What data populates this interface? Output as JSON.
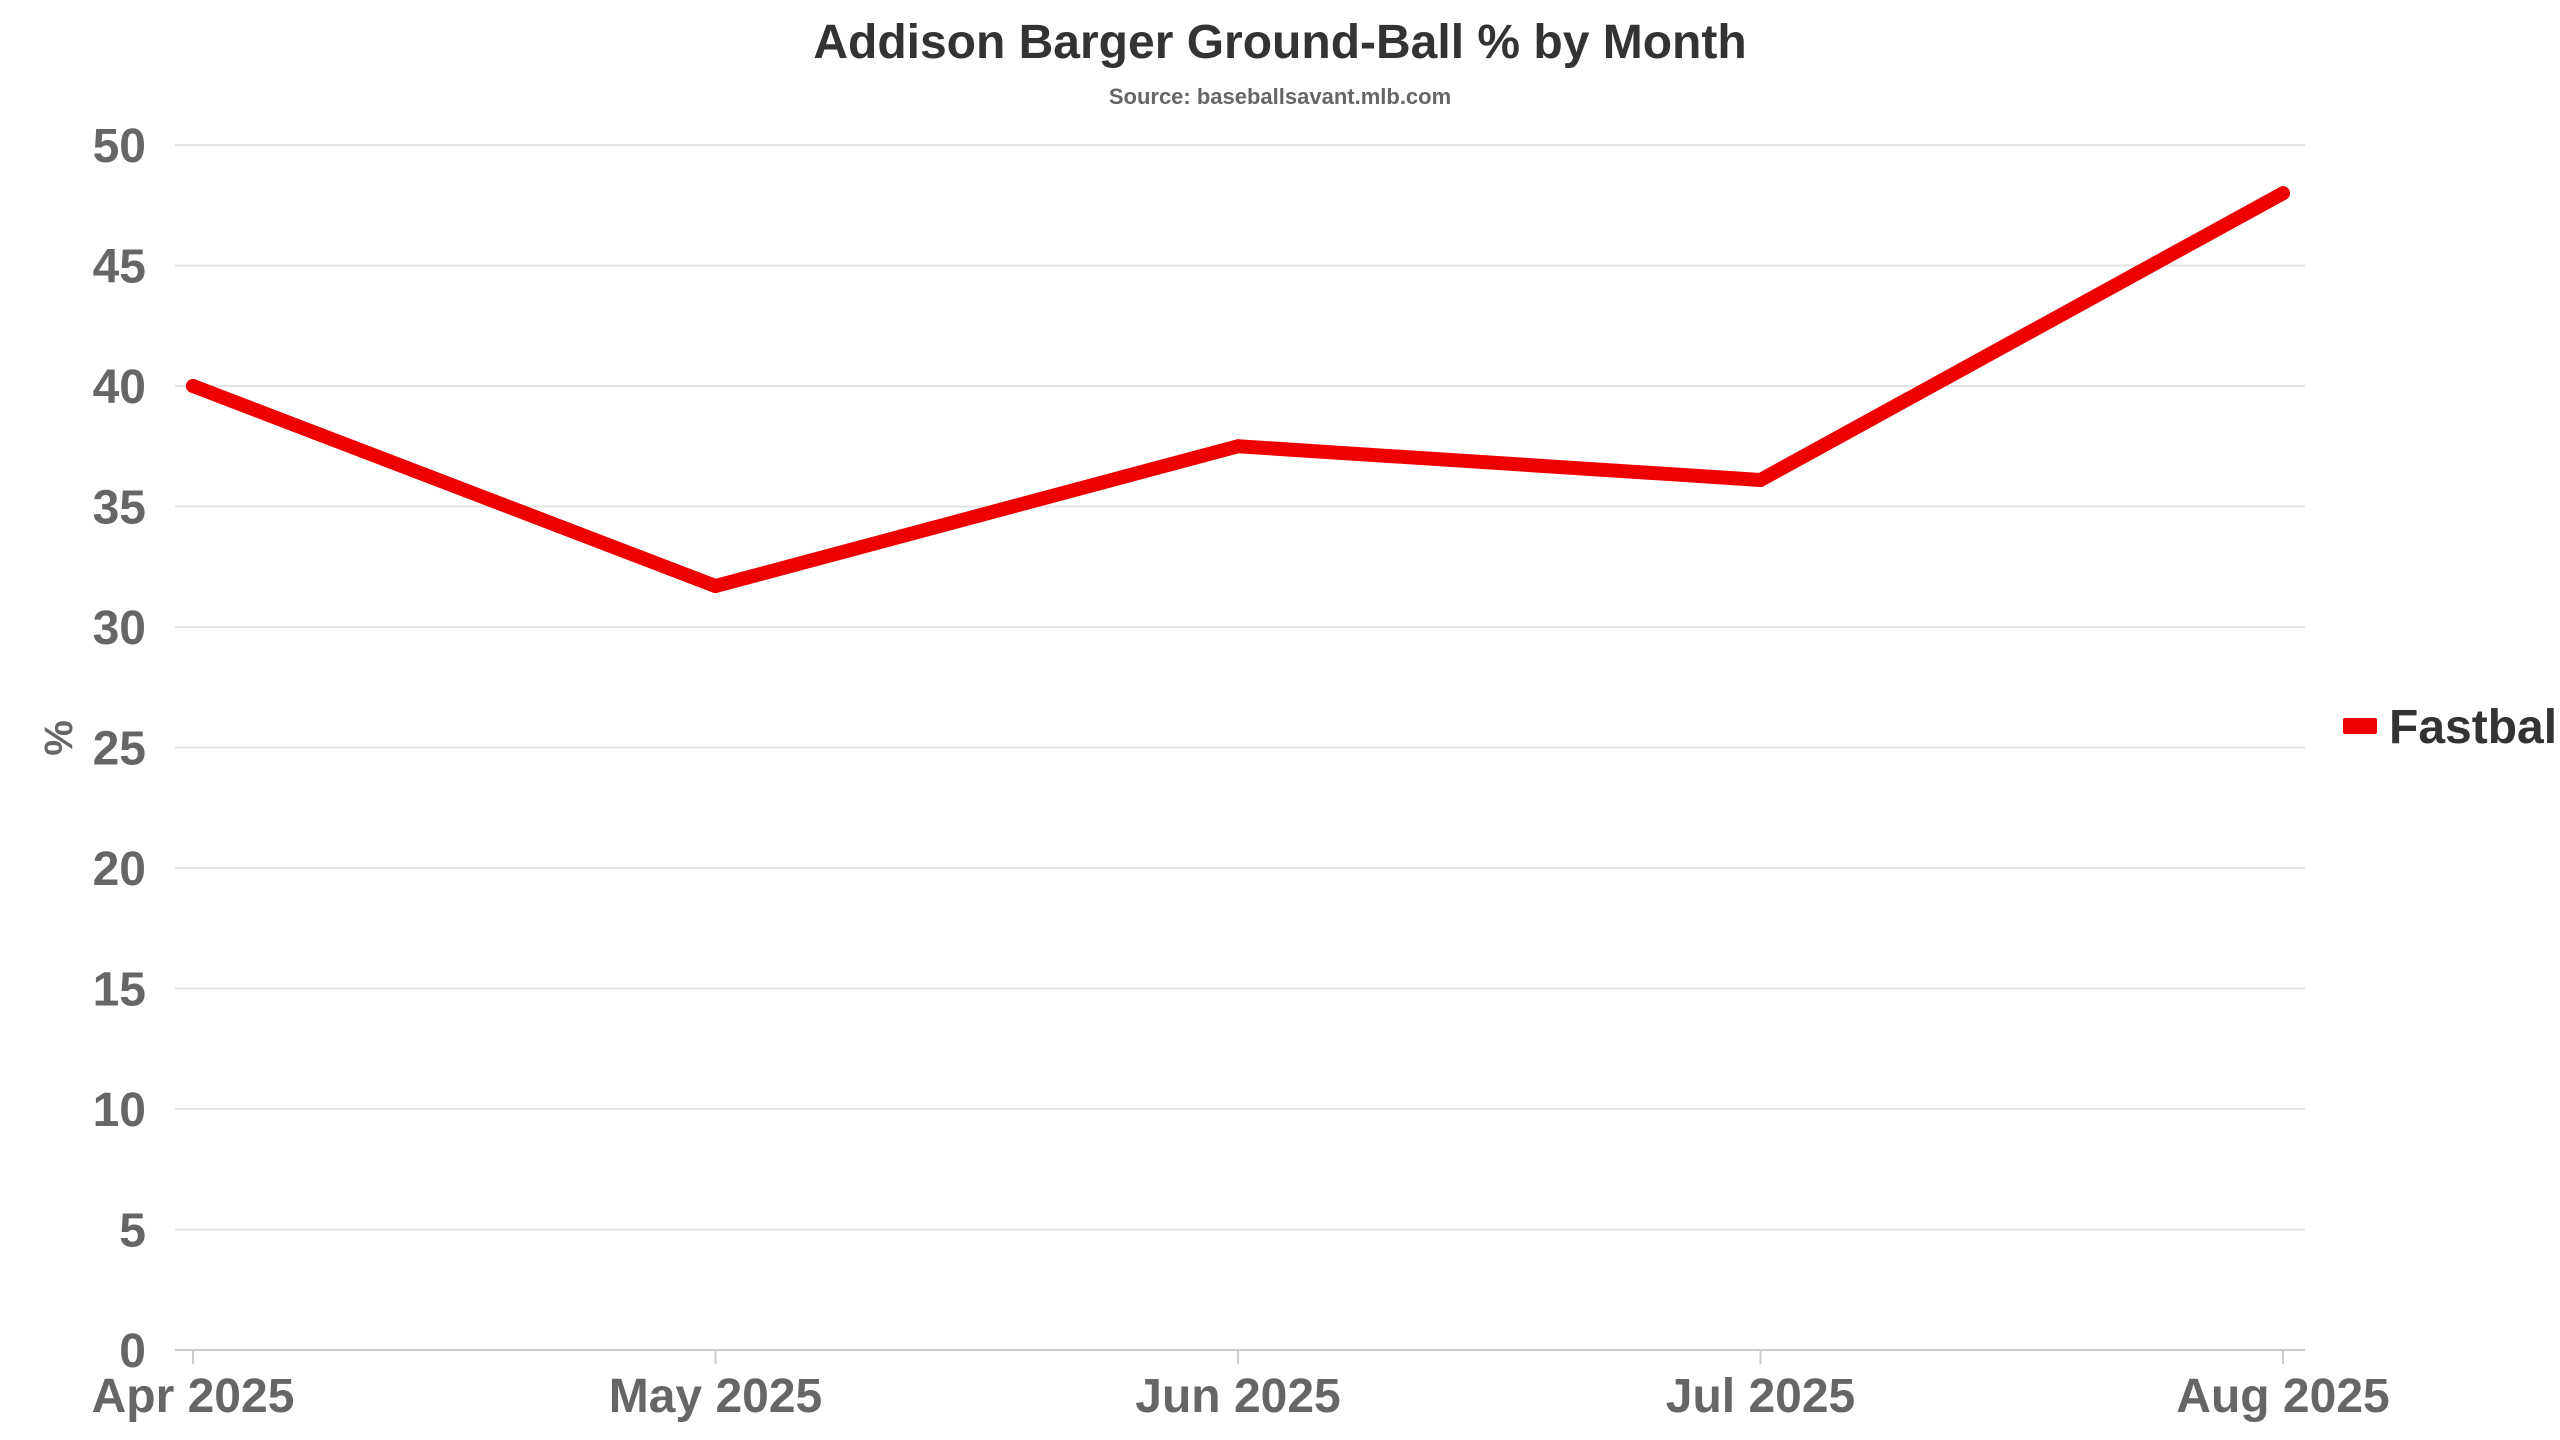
{
  "chart_data": {
    "type": "line",
    "title": "Addison Barger Ground-Ball % by Month",
    "subtitle": "Source: baseballsavant.mlb.com",
    "xlabel": "",
    "ylabel": "%",
    "categories": [
      "Apr 2025",
      "May 2025",
      "Jun 2025",
      "Jul 2025",
      "Aug 2025"
    ],
    "series": [
      {
        "name": "Fastball",
        "values": [
          40.0,
          31.7,
          37.5,
          36.1,
          48.0
        ],
        "color": "#ee0000"
      }
    ],
    "ylim": [
      0,
      50
    ],
    "yticks": [
      "0",
      "5",
      "10",
      "15",
      "20",
      "25",
      "30",
      "35",
      "40",
      "45",
      "50"
    ],
    "grid": true,
    "legend_position": "right"
  }
}
